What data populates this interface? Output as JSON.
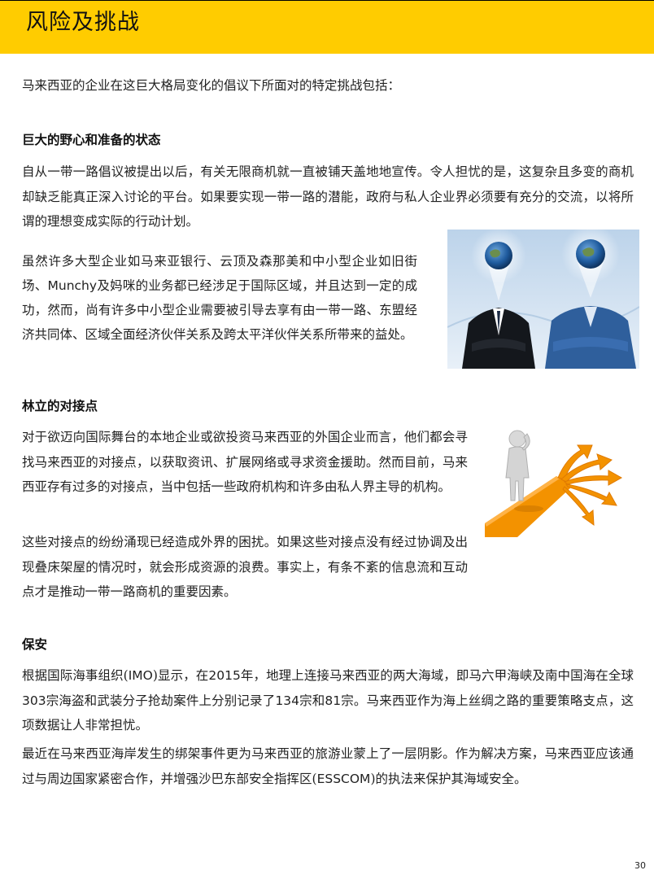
{
  "header": {
    "title": "风险及挑战"
  },
  "intro": "马来西亚的企业在这巨大格局变化的倡议下所面对的特定挑战包括：",
  "section1": {
    "heading": "巨大的野心和准备的状态",
    "para1": "自从一带一路倡议被提出以后，有关无限商机就一直被铺天盖地地宣传。令人担忧的是，这复杂且多变的商机却缺乏能真正深入讨论的平台。如果要实现一带一路的潜能，政府与私人企业界必须要有充分的交流，以将所谓的理想变成实际的行动计划。",
    "para2_a": "虽然许多大型企业如马来亚银行、云顶及森那美和中小型企业如旧街场、",
    "para2_brand": "Munchy",
    "para2_b": "及妈咪的业务都已经涉足于国际区域，并且达到一定的成功，然而，尚有许多中小型企业需要被引导去享有由一带一路、东盟经济共同体、区域全面经济伙伴关系及跨太平洋伙伴关系所带来的益处。"
  },
  "section2": {
    "heading": "林立的对接点",
    "para1": "对于欲迈向国际舞台的本地企业或欲投资马来西亚的外国企业而言，他们都会寻找马来西亚的对接点，以获取资讯、扩展网络或寻求资金援助。然而目前，马来西亚存有过多的对接点，当中包括一些政府机构和许多由私人界主导的机构。",
    "para2": "这些对接点的纷纷涌现已经造成外界的困扰。如果这些对接点没有经过协调及出现叠床架屋的情况时，就会形成资源的浪费。事实上，有条不紊的信息流和互动点才是推动一带一路商机的重要因素。"
  },
  "section3": {
    "heading": "保安",
    "p1_a": "根据国际海事组织(",
    "p1_imo": "IMO",
    "p1_b": ")显示，在",
    "p1_year": "2015",
    "p1_c": "年，地理上连接马来西亚的两大海域，即马六甲海峡及南中国海在全球",
    "p1_n1": "303",
    "p1_d": "宗海盗和武装分子抢劫案件上分别记录了",
    "p1_n2": "134",
    "p1_e": "宗和",
    "p1_n3": "81",
    "p1_f": "宗。马来西亚作为海上丝绸之路的重要策略支点，这项数据让人非常担忧。",
    "p2_a": "最近在马来西亚海岸发生的绑架事件更为马来西亚的旅游业蒙上了一层阴影。作为解决方案，马来西亚应该通过与周边国家紧密合作，并增强沙巴东部安全指挥区(",
    "p2_esscom": "ESSCOM",
    "p2_b": ")的执法来保护其海域安全。"
  },
  "page_number": "30",
  "colors": {
    "header_bg": "#ffcc00",
    "arrow_orange": "#f39200"
  }
}
